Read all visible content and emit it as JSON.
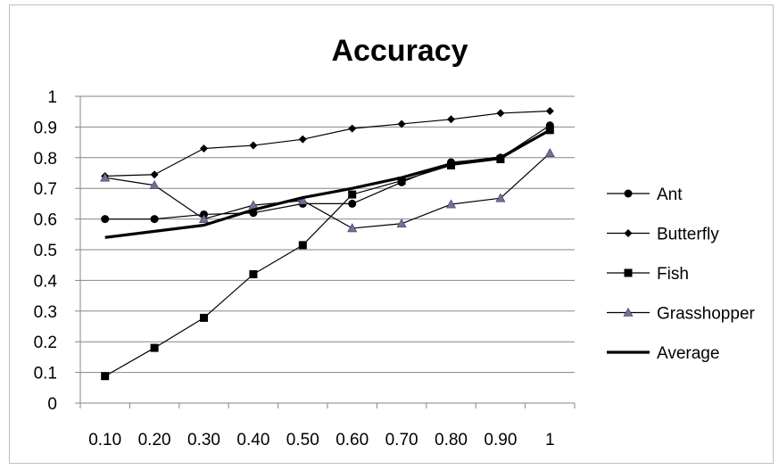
{
  "chart_data": {
    "type": "line",
    "title": "Accuracy",
    "xlabel": "",
    "ylabel": "",
    "categories": [
      "0.10",
      "0.20",
      "0.30",
      "0.40",
      "0.50",
      "0.60",
      "0.70",
      "0.80",
      "0.90",
      "1"
    ],
    "ylim": [
      0,
      1
    ],
    "yticks": [
      "0",
      "0.1",
      "0.2",
      "0.3",
      "0.4",
      "0.5",
      "0.6",
      "0.7",
      "0.8",
      "0.9",
      "1"
    ],
    "grid": "horizontal",
    "legend_position": "right",
    "series": [
      {
        "name": "Ant",
        "marker": "circle",
        "color": "#000000",
        "values": [
          0.6,
          0.6,
          0.615,
          0.62,
          0.65,
          0.65,
          0.72,
          0.785,
          0.8,
          0.905
        ]
      },
      {
        "name": "Butterfly",
        "marker": "diamond",
        "color": "#000000",
        "values": [
          0.74,
          0.745,
          0.83,
          0.84,
          0.86,
          0.895,
          0.91,
          0.925,
          0.945,
          0.952
        ]
      },
      {
        "name": "Fish",
        "marker": "square",
        "color": "#000000",
        "values": [
          0.088,
          0.18,
          0.278,
          0.42,
          0.515,
          0.68,
          0.725,
          0.775,
          0.795,
          0.89
        ]
      },
      {
        "name": "Grasshopper",
        "marker": "triangle",
        "color": "#000000",
        "marker_color": "#7f6a9c",
        "values": [
          0.735,
          0.71,
          0.6,
          0.645,
          0.66,
          0.57,
          0.585,
          0.648,
          0.668,
          0.815
        ]
      },
      {
        "name": "Average",
        "marker": "none",
        "color": "#000000",
        "thick": true,
        "values": [
          0.54,
          0.56,
          0.58,
          0.63,
          0.67,
          0.7,
          0.735,
          0.78,
          0.8,
          0.89
        ]
      }
    ]
  }
}
